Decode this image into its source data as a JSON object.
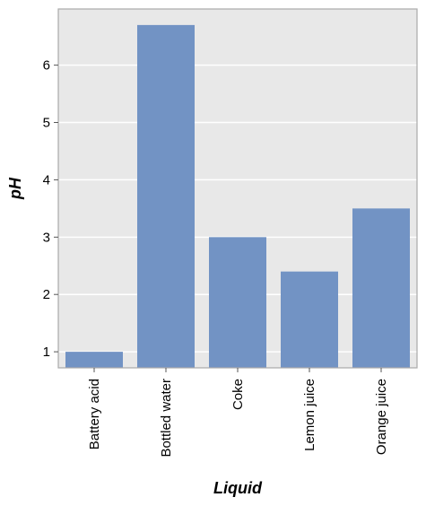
{
  "chart_data": {
    "type": "bar",
    "title": "",
    "xlabel": "Liquid",
    "ylabel": "pH",
    "categories": [
      "Battery acid",
      "Bottled water",
      "Coke",
      "Lemon juice",
      "Orange juice"
    ],
    "values": [
      1.0,
      6.7,
      3.0,
      2.4,
      3.5
    ],
    "ylim": [
      0.72,
      6.98
    ],
    "yticks": [
      1,
      2,
      3,
      4,
      5,
      6
    ],
    "grid": true,
    "legend": "none",
    "colors": {
      "bar": "#7293c4",
      "plot_background": "#e8e8e8",
      "grid": "#ffffff",
      "frame": "#aaaaaa"
    }
  }
}
